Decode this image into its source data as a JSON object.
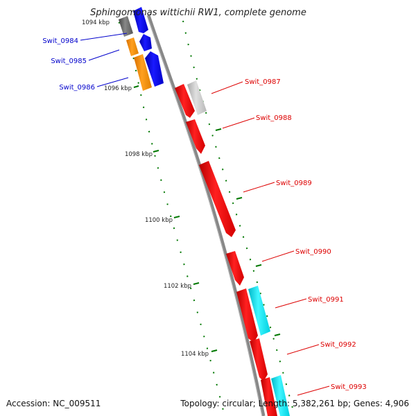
{
  "title": "Sphingomonas wittichii RW1, complete genome",
  "footer": {
    "accession": "Accession: NC_009511",
    "topology": "Topology: circular; Length: 5,382,261 bp; Genes: 4,906"
  },
  "ticks": [
    "1094 kbp",
    "1096 kbp",
    "1098 kbp",
    "1100 kbp",
    "1102 kbp",
    "1104 kbp"
  ],
  "genes": [
    {
      "label": "Swit_0984",
      "strand": "reverse"
    },
    {
      "label": "Swit_0985",
      "strand": "reverse"
    },
    {
      "label": "Swit_0986",
      "strand": "reverse"
    },
    {
      "label": "Swit_0987",
      "strand": "forward"
    },
    {
      "label": "Swit_0988",
      "strand": "forward"
    },
    {
      "label": "Swit_0989",
      "strand": "forward"
    },
    {
      "label": "Swit_0990",
      "strand": "forward"
    },
    {
      "label": "Swit_0991",
      "strand": "forward"
    },
    {
      "label": "Swit_0992",
      "strand": "forward"
    },
    {
      "label": "Swit_0993",
      "strand": "forward"
    }
  ],
  "colors": {
    "forward_label": "#dd0000",
    "reverse_label": "#0000cc",
    "backbone": "#888888",
    "tick": "#007700",
    "red": "#ff0000",
    "blue": "#0000ee",
    "orange": "#ff8c00",
    "cyan": "#00e5ee",
    "gray": "#bbbbbb",
    "dark_gray": "#666666"
  }
}
